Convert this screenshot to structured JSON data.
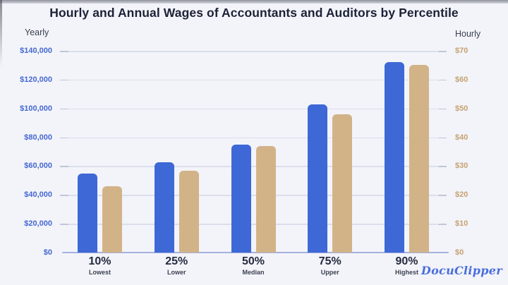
{
  "title": "Hourly and Annual Wages of Accountants and Auditors by Percentile",
  "axis_left_title": "Yearly",
  "axis_right_title": "Hourly",
  "logo_text": "DocuClipper",
  "colors": {
    "background": "#f3f4fa",
    "yearly_bar": "#3d68d6",
    "hourly_bar": "#d2b387",
    "left_axis_text": "#4568d0",
    "right_axis_text": "#c5a271",
    "title_text": "#1c2236",
    "gridline": "#dbdeec"
  },
  "chart_data": {
    "type": "bar",
    "title": "Hourly and Annual Wages of Accountants and Auditors by Percentile",
    "categories": [
      {
        "percent": "10%",
        "label": "Lowest"
      },
      {
        "percent": "25%",
        "label": "Lower"
      },
      {
        "percent": "50%",
        "label": "Median"
      },
      {
        "percent": "75%",
        "label": "Upper"
      },
      {
        "percent": "90%",
        "label": "Highest"
      }
    ],
    "series": [
      {
        "name": "Yearly",
        "axis": "left",
        "values": [
          55000,
          62500,
          75000,
          103000,
          132000
        ]
      },
      {
        "name": "Hourly",
        "axis": "right",
        "values": [
          23,
          28.5,
          37,
          48,
          65
        ]
      }
    ],
    "left_axis": {
      "label": "Yearly",
      "ticks": [
        "$140,000",
        "$120,000",
        "$100,000",
        "$80,000",
        "$60,000",
        "$40,000",
        "$20,000",
        "$0"
      ],
      "max": 140000,
      "min": 0
    },
    "right_axis": {
      "label": "Hourly",
      "ticks": [
        "$70",
        "$60",
        "$50",
        "$40",
        "$30",
        "$20",
        "$10",
        "$0"
      ],
      "max": 70,
      "min": 0
    },
    "grid": true,
    "legend": false
  }
}
